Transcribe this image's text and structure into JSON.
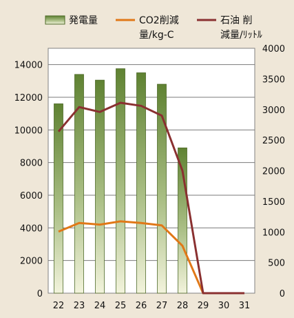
{
  "chart_data": {
    "type": "bar",
    "title": "",
    "categories": [
      "22",
      "23",
      "24",
      "25",
      "26",
      "27",
      "28",
      "29",
      "30",
      "31"
    ],
    "legend": {
      "placement": "top",
      "bar_label": "発電量",
      "co2_label_line1": "CO2削減",
      "co2_label_line2": "量/kg-C",
      "oil_label_line1": "石油 削",
      "oil_label_line2": "減量/ﾘｯﾄﾙ"
    },
    "left_axis": {
      "ylim": [
        0,
        15000
      ],
      "ticks": [
        "0",
        "2000",
        "4000",
        "6000",
        "8000",
        "10000",
        "12000",
        "14000"
      ]
    },
    "right_axis": {
      "ylim": [
        0,
        4000
      ],
      "ticks": [
        "0",
        "500",
        "1000",
        "1500",
        "2000",
        "2500",
        "3000",
        "3500",
        "4000"
      ]
    },
    "grid": true,
    "series": [
      {
        "name": "発電量",
        "kind": "bar",
        "axis": "left",
        "color": "#6a8a3a",
        "values": [
          11600,
          13400,
          13050,
          13750,
          13500,
          12800,
          8900,
          null,
          null,
          null
        ]
      },
      {
        "name": "CO2削減量/kg-C",
        "kind": "line",
        "axis": "left",
        "color": "#e07818",
        "values": [
          3770,
          4300,
          4200,
          4400,
          4300,
          4150,
          2900,
          0,
          0,
          0
        ]
      },
      {
        "name": "石油 削減量/ﾘｯﾄﾙ",
        "kind": "line",
        "axis": "right",
        "color": "#8a3030",
        "values": [
          2640,
          3040,
          2960,
          3110,
          3060,
          2900,
          2000,
          0,
          0,
          0
        ]
      }
    ]
  }
}
